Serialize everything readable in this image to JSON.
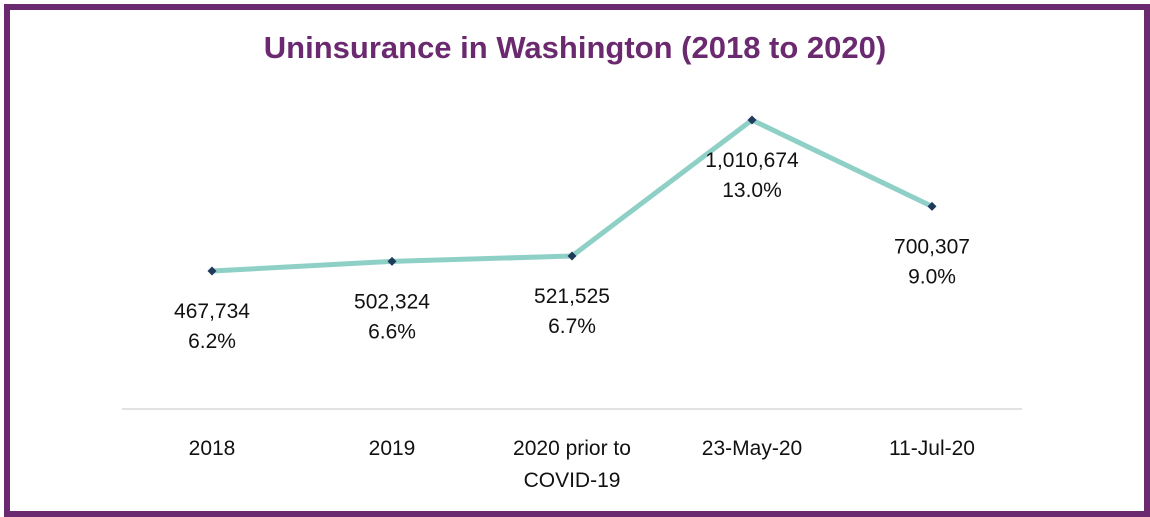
{
  "chart_data": {
    "type": "line",
    "title": "Uninsurance in Washington (2018 to 2020)",
    "categories": [
      "2018",
      "2019",
      "2020 prior to COVID-19",
      "23-May-20",
      "11-Jul-20"
    ],
    "category_lines": [
      [
        "2018"
      ],
      [
        "2019"
      ],
      [
        "2020 prior to",
        "COVID-19"
      ],
      [
        "23-May-20"
      ],
      [
        "11-Jul-20"
      ]
    ],
    "series": [
      {
        "values": [
          467734,
          502324,
          521525,
          1010674,
          700307
        ],
        "value_labels": [
          "467,734",
          "502,324",
          "521,525",
          "1,010,674",
          "700,307"
        ],
        "percent_labels": [
          "6.2%",
          "6.6%",
          "6.7%",
          "13.0%",
          "9.0%"
        ]
      }
    ],
    "line_color": "#8fd0c6",
    "marker_color": "#1f3a5a",
    "title_color": "#6b2a6f",
    "border_color": "#6b2a6f",
    "axis_color": "#d9d9d9",
    "ylim": [
      0,
      1100000
    ],
    "legend": "none",
    "grid": false
  }
}
